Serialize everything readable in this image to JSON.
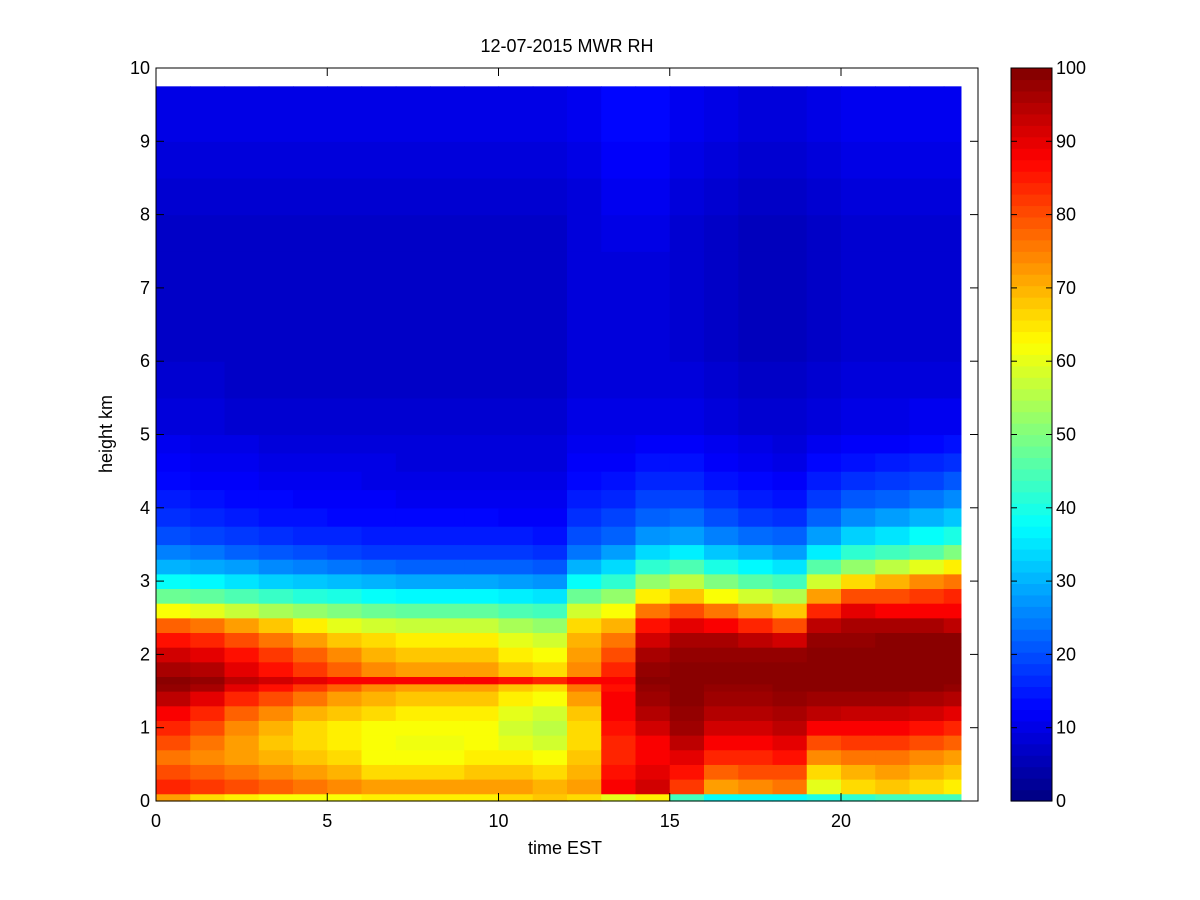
{
  "chart_data": {
    "type": "heatmap",
    "title": "12-07-2015 MWR RH",
    "xlabel": "time EST",
    "ylabel": "height km",
    "xlim": [
      0,
      24
    ],
    "ylim": [
      0,
      10
    ],
    "x_ticks": [
      0,
      5,
      10,
      15,
      20
    ],
    "y_ticks": [
      0,
      1,
      2,
      3,
      4,
      5,
      6,
      7,
      8,
      9,
      10
    ],
    "colorbar": {
      "range": [
        0,
        100
      ],
      "ticks": [
        0,
        10,
        20,
        30,
        40,
        50,
        60,
        70,
        80,
        90,
        100
      ],
      "colormap": "jet"
    },
    "x_edges": [
      0,
      1,
      2,
      3,
      4,
      5,
      6,
      7,
      8,
      9,
      10,
      11,
      12,
      13,
      14,
      15,
      16,
      17,
      18,
      19,
      20,
      21,
      22,
      23,
      23.5
    ],
    "y_edges": [
      0,
      0.1,
      0.3,
      0.5,
      0.7,
      0.9,
      1.1,
      1.3,
      1.5,
      1.6,
      1.7,
      1.9,
      2.1,
      2.3,
      2.5,
      2.7,
      2.9,
      3.1,
      3.3,
      3.5,
      3.75,
      4.0,
      4.25,
      4.5,
      4.75,
      5.0,
      5.5,
      6.0,
      6.5,
      7.0,
      7.5,
      8.0,
      8.5,
      9.0,
      9.75
    ],
    "columns": [
      {
        "x": 0.5,
        "values": [
          72,
          84,
          80,
          76,
          80,
          84,
          88,
          94,
          98,
          99,
          96,
          92,
          86,
          78,
          62,
          48,
          38,
          30,
          25,
          20,
          17,
          15,
          13,
          12,
          11,
          9,
          8,
          7,
          7,
          7,
          7,
          8,
          9,
          10
        ]
      },
      {
        "x": 1.5,
        "values": [
          66,
          82,
          78,
          74,
          76,
          80,
          84,
          90,
          96,
          98,
          95,
          90,
          84,
          76,
          60,
          47,
          37,
          29,
          24,
          19,
          16,
          14,
          12,
          11,
          10,
          9,
          8,
          7,
          7,
          7,
          7,
          8,
          9,
          10
        ]
      },
      {
        "x": 2.5,
        "values": [
          64,
          80,
          76,
          72,
          72,
          74,
          78,
          84,
          90,
          94,
          90,
          86,
          80,
          72,
          57,
          45,
          35,
          28,
          22,
          18,
          15,
          13,
          12,
          11,
          10,
          8,
          7,
          7,
          7,
          7,
          7,
          8,
          9,
          10
        ]
      },
      {
        "x": 3.5,
        "values": [
          62,
          78,
          74,
          70,
          68,
          70,
          74,
          80,
          86,
          92,
          86,
          82,
          76,
          68,
          54,
          43,
          33,
          26,
          21,
          17,
          14,
          13,
          11,
          10,
          9,
          8,
          7,
          7,
          7,
          7,
          7,
          8,
          9,
          10
        ]
      },
      {
        "x": 4.5,
        "values": [
          62,
          76,
          72,
          68,
          66,
          66,
          70,
          76,
          82,
          90,
          82,
          78,
          72,
          64,
          52,
          41,
          32,
          25,
          20,
          16,
          14,
          12,
          11,
          10,
          9,
          8,
          7,
          7,
          7,
          7,
          7,
          8,
          9,
          10
        ]
      },
      {
        "x": 5.5,
        "values": [
          62,
          74,
          70,
          66,
          64,
          64,
          68,
          72,
          78,
          88,
          78,
          74,
          68,
          60,
          50,
          40,
          31,
          24,
          19,
          16,
          13,
          12,
          11,
          10,
          9,
          8,
          7,
          7,
          7,
          7,
          7,
          8,
          9,
          10
        ]
      },
      {
        "x": 6.5,
        "values": [
          64,
          72,
          66,
          62,
          62,
          62,
          66,
          70,
          74,
          88,
          74,
          70,
          66,
          58,
          48,
          38,
          30,
          23,
          18,
          15,
          13,
          12,
          10,
          10,
          9,
          8,
          7,
          7,
          7,
          7,
          7,
          8,
          9,
          10
        ]
      },
      {
        "x": 7.5,
        "values": [
          64,
          72,
          66,
          62,
          61,
          62,
          64,
          68,
          72,
          88,
          72,
          68,
          64,
          57,
          47,
          37,
          29,
          22,
          18,
          15,
          13,
          11,
          10,
          9,
          9,
          8,
          7,
          7,
          7,
          7,
          7,
          8,
          9,
          10
        ]
      },
      {
        "x": 8.5,
        "values": [
          64,
          72,
          66,
          62,
          61,
          62,
          64,
          68,
          72,
          88,
          72,
          68,
          64,
          57,
          47,
          37,
          29,
          22,
          18,
          15,
          13,
          11,
          10,
          9,
          9,
          8,
          7,
          7,
          7,
          7,
          7,
          8,
          9,
          10
        ]
      },
      {
        "x": 9.5,
        "values": [
          64,
          72,
          68,
          64,
          62,
          62,
          64,
          68,
          72,
          88,
          72,
          68,
          64,
          57,
          47,
          37,
          29,
          22,
          18,
          15,
          13,
          11,
          10,
          9,
          9,
          8,
          7,
          7,
          7,
          7,
          7,
          8,
          9,
          10
        ]
      },
      {
        "x": 10.5,
        "values": [
          66,
          72,
          68,
          64,
          60,
          58,
          60,
          64,
          68,
          86,
          68,
          64,
          60,
          54,
          45,
          36,
          28,
          22,
          18,
          15,
          12,
          11,
          10,
          9,
          9,
          8,
          7,
          7,
          7,
          7,
          7,
          8,
          9,
          10
        ]
      },
      {
        "x": 11.5,
        "values": [
          68,
          70,
          66,
          62,
          58,
          56,
          58,
          62,
          66,
          84,
          66,
          62,
          58,
          52,
          44,
          35,
          27,
          21,
          17,
          14,
          12,
          11,
          10,
          9,
          9,
          8,
          7,
          7,
          7,
          7,
          7,
          8,
          9,
          10
        ]
      },
      {
        "x": 12.5,
        "values": [
          66,
          72,
          70,
          68,
          66,
          66,
          68,
          72,
          76,
          88,
          74,
          72,
          70,
          66,
          58,
          48,
          38,
          30,
          24,
          20,
          17,
          15,
          13,
          12,
          11,
          10,
          9,
          9,
          9,
          9,
          9,
          9,
          10,
          11
        ]
      },
      {
        "x": 13.5,
        "values": [
          60,
          88,
          86,
          84,
          84,
          86,
          88,
          88,
          86,
          88,
          84,
          80,
          76,
          70,
          62,
          52,
          42,
          34,
          28,
          22,
          19,
          16,
          14,
          12,
          11,
          10,
          9,
          9,
          9,
          9,
          10,
          11,
          12,
          13
        ]
      },
      {
        "x": 14.5,
        "values": [
          64,
          92,
          90,
          88,
          88,
          92,
          95,
          97,
          98,
          99,
          98,
          96,
          92,
          86,
          76,
          64,
          52,
          42,
          34,
          27,
          22,
          19,
          16,
          14,
          12,
          10,
          9,
          9,
          9,
          9,
          10,
          11,
          12,
          13
        ]
      },
      {
        "x": 15.5,
        "values": [
          44,
          82,
          86,
          90,
          94,
          97,
          98,
          99,
          99,
          99,
          99,
          98,
          96,
          90,
          80,
          68,
          56,
          45,
          36,
          28,
          23,
          19,
          16,
          14,
          12,
          10,
          9,
          8,
          8,
          8,
          8,
          9,
          10,
          11
        ]
      },
      {
        "x": 16.5,
        "values": [
          38,
          72,
          78,
          84,
          88,
          92,
          95,
          97,
          98,
          99,
          99,
          98,
          96,
          88,
          76,
          62,
          50,
          40,
          32,
          25,
          20,
          17,
          14,
          12,
          11,
          9,
          8,
          7,
          7,
          7,
          7,
          8,
          9,
          10
        ]
      },
      {
        "x": 17.5,
        "values": [
          38,
          74,
          80,
          84,
          88,
          92,
          95,
          97,
          98,
          99,
          99,
          98,
          94,
          84,
          72,
          58,
          46,
          37,
          30,
          23,
          18,
          15,
          13,
          11,
          10,
          8,
          7,
          6,
          6,
          6,
          6,
          7,
          8,
          9
        ]
      },
      {
        "x": 18.5,
        "values": [
          38,
          76,
          80,
          86,
          90,
          94,
          96,
          98,
          99,
          99,
          99,
          98,
          92,
          80,
          68,
          55,
          44,
          35,
          28,
          22,
          17,
          14,
          12,
          10,
          9,
          8,
          7,
          6,
          6,
          6,
          6,
          7,
          8,
          9
        ]
      },
      {
        "x": 19.5,
        "values": [
          40,
          60,
          66,
          74,
          80,
          88,
          94,
          97,
          99,
          99,
          99,
          99,
          98,
          94,
          84,
          72,
          58,
          46,
          36,
          28,
          22,
          18,
          15,
          13,
          11,
          9,
          8,
          7,
          7,
          7,
          7,
          8,
          9,
          10
        ]
      },
      {
        "x": 20.5,
        "values": [
          42,
          66,
          70,
          76,
          82,
          88,
          93,
          97,
          99,
          99,
          99,
          99,
          98,
          96,
          90,
          80,
          66,
          52,
          42,
          33,
          26,
          21,
          17,
          14,
          12,
          10,
          9,
          8,
          8,
          8,
          8,
          9,
          10,
          11
        ]
      },
      {
        "x": 21.5,
        "values": [
          44,
          68,
          72,
          76,
          82,
          88,
          93,
          97,
          99,
          99,
          99,
          99,
          99,
          96,
          88,
          80,
          70,
          56,
          44,
          35,
          28,
          22,
          18,
          15,
          12,
          10,
          9,
          8,
          8,
          8,
          8,
          9,
          10,
          11
        ]
      },
      {
        "x": 22.5,
        "values": [
          44,
          66,
          70,
          74,
          80,
          86,
          92,
          96,
          99,
          99,
          99,
          99,
          99,
          96,
          88,
          82,
          74,
          60,
          46,
          38,
          30,
          24,
          19,
          16,
          13,
          11,
          9,
          8,
          8,
          8,
          8,
          9,
          10,
          11
        ]
      },
      {
        "x": 23.25,
        "values": [
          44,
          64,
          68,
          72,
          78,
          84,
          90,
          95,
          98,
          99,
          99,
          99,
          99,
          94,
          88,
          84,
          76,
          64,
          50,
          40,
          32,
          26,
          21,
          17,
          14,
          11,
          9,
          8,
          8,
          8,
          8,
          9,
          10,
          11
        ]
      }
    ]
  }
}
